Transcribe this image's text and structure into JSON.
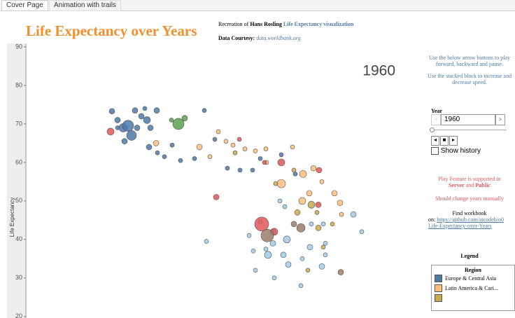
{
  "tabs": [
    "Cover Page",
    "Animation with trails"
  ],
  "header": {
    "title": "Life Expectancy over Years",
    "credit_prefix": "Recreation of",
    "credit_author": "Hans Rosling",
    "credit_link": "Life Expectancy visualization",
    "data_prefix": "Data Courtesy:",
    "data_link": "data.worldbank.org"
  },
  "chart_data": {
    "type": "scatter",
    "annotation": "1960",
    "ylabel": "Life Expectancy",
    "ylim": [
      19.6,
      90.9
    ],
    "yticks": [
      20,
      30,
      40,
      50,
      60,
      70,
      80,
      90
    ],
    "xlim": [
      37,
      600
    ],
    "series": [
      {
        "name": "Europe & Central Asia",
        "color": "#4e79a7",
        "x": [
          160,
          168,
          176,
          183,
          188,
          193,
          202,
          207,
          210,
          215,
          224,
          178,
          213,
          225,
          235,
          246,
          258,
          292,
          278,
          307,
          325,
          343,
          361,
          372,
          402,
          422,
          168,
          196
        ],
        "values": [
          73.3,
          71,
          69,
          69.5,
          67,
          73.5,
          72,
          74,
          71,
          69,
          73.5,
          65.5,
          64,
          62.5,
          61.5,
          64.5,
          60.5,
          73.5,
          61,
          66,
          58.5,
          58,
          58,
          61,
          62,
          57,
          69,
          69
        ],
        "sizes": [
          4,
          4,
          6,
          8,
          7,
          4,
          4,
          3,
          5,
          4,
          4,
          4,
          4,
          3,
          3,
          3,
          3,
          3,
          3,
          3,
          3,
          3,
          3,
          3,
          3,
          3,
          3,
          4
        ]
      },
      {
        "name": "Latin America & Cari...",
        "color": "#ffbe7d",
        "x": [
          223,
          285,
          300,
          312,
          323,
          333,
          350,
          365,
          381,
          380,
          418,
          402,
          432,
          448,
          442,
          460,
          478,
          486,
          433,
          488
        ],
        "values": [
          65,
          64,
          61.5,
          68,
          65.5,
          64.5,
          63.5,
          63,
          60,
          63.5,
          64,
          54.5,
          50,
          58.5,
          52,
          55,
          52,
          49.5,
          57,
          46.5
        ],
        "sizes": [
          4,
          4,
          3,
          3,
          3,
          3,
          3,
          3,
          3,
          3,
          3,
          6,
          5,
          4,
          4,
          3,
          4,
          4,
          5,
          3
        ]
      },
      {
        "color": "#c9a94f",
        "x": [
          336,
          394,
          420,
          425,
          445,
          453,
          455,
          475,
          440,
          462
        ],
        "values": [
          62.5,
          54.5,
          58,
          47,
          49,
          47,
          43,
          44,
          32,
          38
        ],
        "sizes": [
          3,
          3,
          3,
          4,
          5,
          3,
          4,
          3,
          3,
          3
        ]
      },
      {
        "color": "#59a14f",
        "x": [
          255,
          264,
          245
        ],
        "values": [
          70,
          71.5,
          71
        ],
        "sizes": [
          8,
          4,
          3
        ]
      },
      {
        "color": "#a0cbe8",
        "x": [
          295,
          362,
          380,
          390,
          410,
          383,
          405,
          412,
          432,
          443,
          460,
          465,
          365,
          392,
          430,
          400,
          407,
          445,
          462,
          505,
          517,
          465,
          372,
          356,
          390
        ],
        "values": [
          39.5,
          37,
          37.5,
          39,
          40,
          36,
          36,
          33.5,
          35,
          38,
          33,
          36,
          32,
          30,
          28,
          50,
          48.5,
          44,
          44,
          46.5,
          42,
          39,
          44.5,
          41,
          42
        ],
        "sizes": [
          3,
          3,
          3,
          4,
          5,
          5,
          4,
          4,
          3,
          4,
          4,
          3,
          3,
          3,
          3,
          3,
          3,
          3,
          3,
          4,
          3,
          3,
          3,
          3,
          4
        ]
      },
      {
        "color": "#e15759",
        "x": [
          158,
          309,
          342,
          374,
          392,
          402,
          456,
          378,
          455
        ],
        "values": [
          68,
          51,
          66,
          44,
          42,
          60,
          58,
          60,
          49
        ],
        "sizes": [
          5,
          4,
          3,
          10,
          5,
          5,
          4,
          3,
          4
        ]
      },
      {
        "color": "#9c7b6b",
        "x": [
          382,
          430,
          487,
          420
        ],
        "values": [
          41,
          43,
          31.5,
          44
        ],
        "sizes": [
          9,
          6,
          4,
          4
        ]
      }
    ],
    "legend_title": "Legend",
    "legend_heading": "Region"
  },
  "side": {
    "help1": "Use the below arrow buttons to play forward, backward and pause.",
    "help2": "Use the stacked block to increase and decrease speed.",
    "year_label": "Year",
    "year_value": "1960",
    "history": "Show history",
    "play_prefix": "Play Feature is supported in",
    "play_server": "Server",
    "play_and": "and",
    "play_public": "Public",
    "manual": "Should change years manually",
    "find": "Find workbook",
    "find_on": "on:",
    "find_link": "https://github.com/atcodeb/o0 Life-Expectancy-over-Years"
  }
}
